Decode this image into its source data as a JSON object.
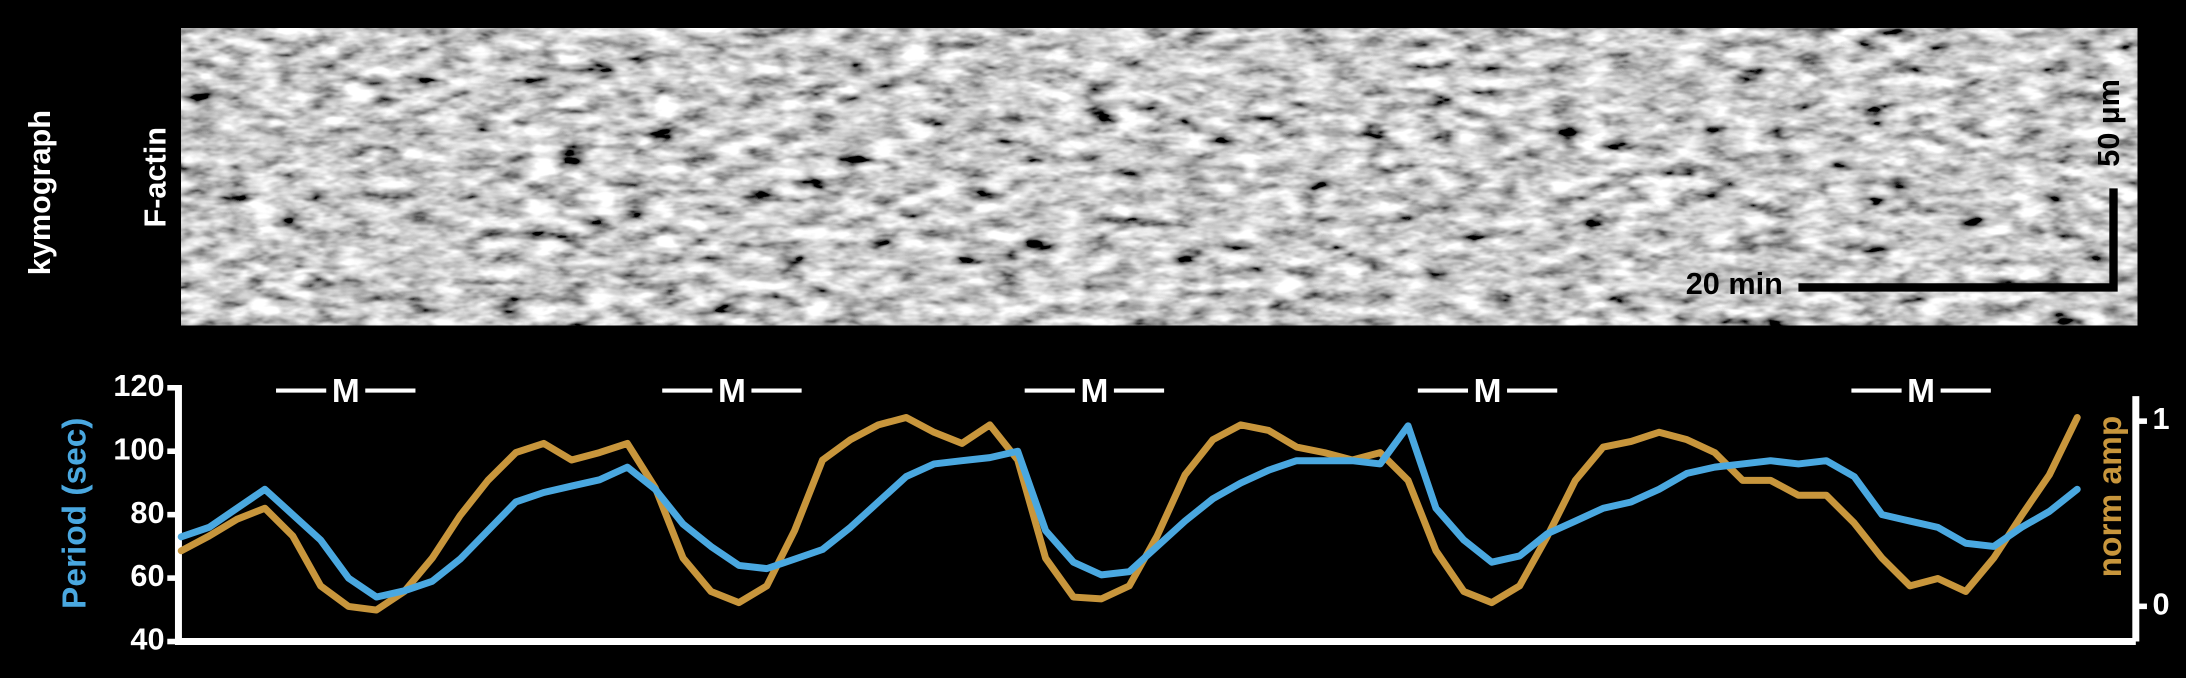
{
  "chart_data": {
    "type": "line",
    "image_labels": {
      "row": "kymograph",
      "channel": "F-actin",
      "space_scale": "50 µm",
      "time_scale": "20 min"
    },
    "annotations": [
      "M",
      "M",
      "M",
      "M",
      "M"
    ],
    "y_label": "Period (sec)",
    "y2_label": "norm amp",
    "ylim": [
      40,
      120
    ],
    "yticks": [
      40,
      60,
      80,
      100,
      120
    ],
    "y2lim": [
      -0.19,
      1.18
    ],
    "y2ticks": [
      0,
      1
    ],
    "series": [
      {
        "name": "Period (sec)",
        "color": "#4aa8e0",
        "values": [
          73,
          76,
          82,
          88,
          80,
          72,
          60,
          54,
          56,
          59,
          66,
          75,
          84,
          87,
          89,
          91,
          95,
          88,
          77,
          70,
          64,
          63,
          66,
          69,
          76,
          84,
          92,
          96,
          97,
          98,
          100,
          75,
          65,
          61,
          62,
          70,
          78,
          85,
          90,
          94,
          97,
          97,
          97,
          96,
          108,
          82,
          72,
          65,
          67,
          74,
          78,
          82,
          84,
          88,
          93,
          95,
          96,
          97,
          96,
          97,
          92,
          80,
          78,
          76,
          71,
          70,
          76,
          81,
          88
        ]
      },
      {
        "name": "norm amp",
        "color": "#c8963c",
        "axis": "y2",
        "values": [
          0.3,
          0.38,
          0.47,
          0.53,
          0.38,
          0.11,
          0,
          -0.02,
          0.08,
          0.26,
          0.49,
          0.68,
          0.83,
          0.88,
          0.79,
          0.83,
          0.88,
          0.64,
          0.26,
          0.08,
          0.02,
          0.11,
          0.41,
          0.79,
          0.9,
          0.98,
          1.02,
          0.94,
          0.88,
          0.98,
          0.79,
          0.26,
          0.05,
          0.04,
          0.11,
          0.38,
          0.71,
          0.9,
          0.98,
          0.95,
          0.86,
          0.83,
          0.79,
          0.83,
          0.68,
          0.3,
          0.08,
          0.02,
          0.11,
          0.38,
          0.68,
          0.86,
          0.89,
          0.94,
          0.9,
          0.83,
          0.68,
          0.68,
          0.6,
          0.6,
          0.45,
          0.26,
          0.11,
          0.15,
          0.08,
          0.26,
          0.49,
          0.71,
          1.02
        ]
      }
    ]
  }
}
